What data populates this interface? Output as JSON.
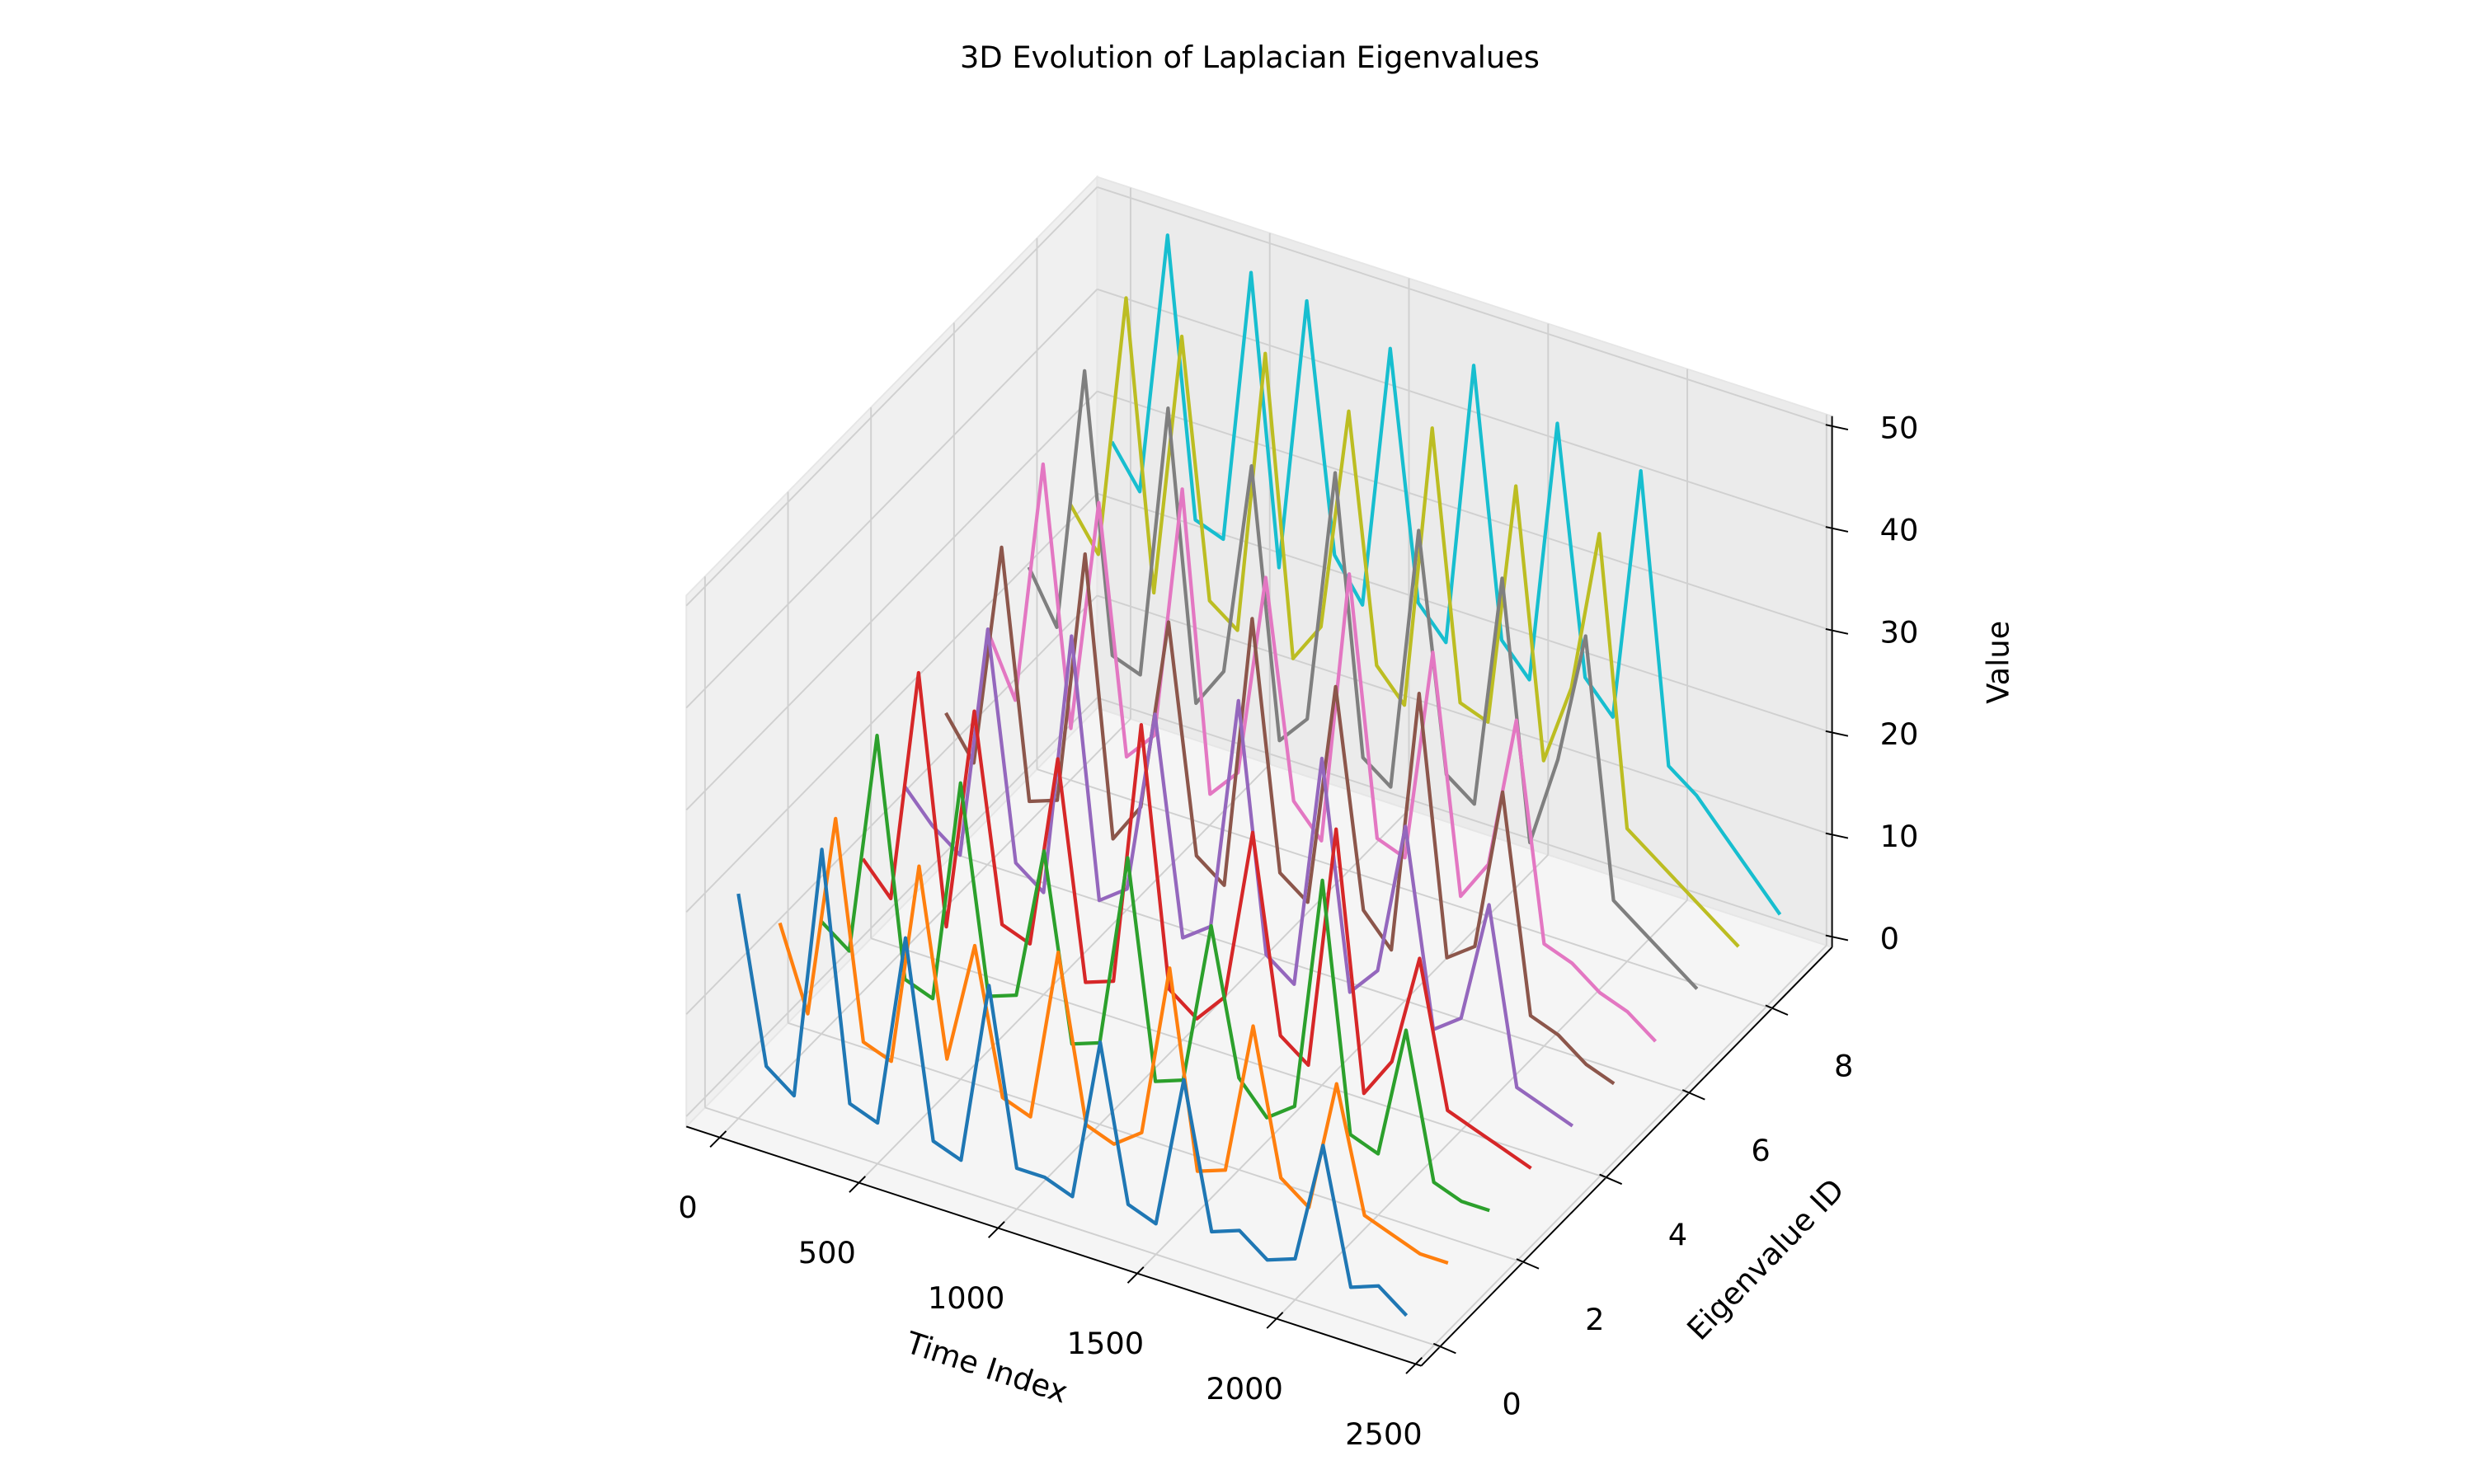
{
  "chart_data": {
    "type": "line3d",
    "title": "3D Evolution of Laplacian Eigenvalues",
    "xlabel": "Time Index",
    "ylabel": "Eigenvalue ID",
    "zlabel": "Value",
    "grid": true,
    "xlim": [
      -120,
      2520
    ],
    "ylim": [
      -0.45,
      9.45
    ],
    "zlim": [
      -1,
      51
    ],
    "xticks": [
      0,
      500,
      1000,
      1500,
      2000,
      2500
    ],
    "yticks": [
      0,
      2,
      4,
      6,
      8
    ],
    "zticks": [
      0,
      10,
      20,
      30,
      40,
      50
    ],
    "x": [
      0,
      100,
      200,
      300,
      400,
      500,
      600,
      700,
      800,
      900,
      1000,
      1100,
      1200,
      1300,
      1400,
      1500,
      1600,
      1700,
      1800,
      1900,
      2000,
      2100,
      2200,
      2300,
      2400
    ],
    "series": [
      {
        "id": 0,
        "color": "#1f77b4",
        "values": [
          21,
          5,
          3,
          28,
          4,
          3,
          22,
          3,
          2,
          20,
          3,
          3,
          2,
          18,
          3,
          2,
          17,
          3,
          4,
          2,
          3,
          15,
          2,
          3,
          1
        ]
      },
      {
        "id": 1,
        "color": "#ff7f0e",
        "values": [
          14,
          6,
          26,
          5,
          4,
          24,
          6,
          18,
          4,
          3,
          20,
          4,
          3,
          5,
          22,
          3,
          4,
          19,
          5,
          3,
          16,
          4,
          3,
          2,
          2
        ]
      },
      {
        "id": 2,
        "color": "#2ca02c",
        "values": [
          10,
          8,
          30,
          7,
          6,
          28,
          8,
          9,
          24,
          6,
          7,
          26,
          5,
          6,
          22,
          8,
          5,
          7,
          30,
          6,
          5,
          18,
          4,
          3,
          3
        ]
      },
      {
        "id": 3,
        "color": "#d62728",
        "values": [
          12,
          9,
          32,
          8,
          30,
          10,
          9,
          28,
          7,
          8,
          34,
          9,
          7,
          10,
          27,
          8,
          6,
          30,
          5,
          9,
          20,
          6,
          5,
          4,
          3
        ]
      },
      {
        "id": 4,
        "color": "#9467bd",
        "values": [
          15,
          12,
          10,
          33,
          11,
          9,
          35,
          10,
          12,
          30,
          9,
          11,
          34,
          10,
          8,
          31,
          9,
          12,
          27,
          8,
          10,
          22,
          5,
          4,
          3
        ]
      },
      {
        "id": 5,
        "color": "#8c564b",
        "values": [
          18,
          14,
          36,
          12,
          13,
          38,
          11,
          15,
          34,
          12,
          10,
          37,
          13,
          11,
          33,
          12,
          9,
          35,
          10,
          12,
          28,
          7,
          6,
          4,
          3
        ]
      },
      {
        "id": 6,
        "color": "#e377c2",
        "values": [
          22,
          16,
          40,
          15,
          38,
          14,
          17,
          42,
          13,
          16,
          36,
          15,
          12,
          39,
          14,
          13,
          34,
          11,
          15,
          30,
          9,
          8,
          6,
          5,
          3
        ]
      },
      {
        "id": 7,
        "color": "#7f7f7f",
        "values": [
          24,
          19,
          45,
          18,
          17,
          44,
          16,
          20,
          41,
          15,
          18,
          43,
          16,
          14,
          40,
          17,
          15,
          38,
          13,
          22,
          35,
          10,
          8,
          6,
          4
        ]
      },
      {
        "id": 8,
        "color": "#bcbd22",
        "values": [
          26,
          22,
          48,
          20,
          46,
          21,
          19,
          47,
          18,
          22,
          44,
          20,
          17,
          45,
          19,
          18,
          42,
          16,
          24,
          40,
          12,
          10,
          8,
          6,
          4
        ]
      },
      {
        "id": 9,
        "color": "#17becf",
        "values": [
          28,
          24,
          50,
          23,
          22,
          49,
          21,
          48,
          24,
          20,
          46,
          22,
          19,
          47,
          21,
          18,
          44,
          20,
          17,
          42,
          14,
          12,
          9,
          6,
          3
        ]
      }
    ]
  }
}
